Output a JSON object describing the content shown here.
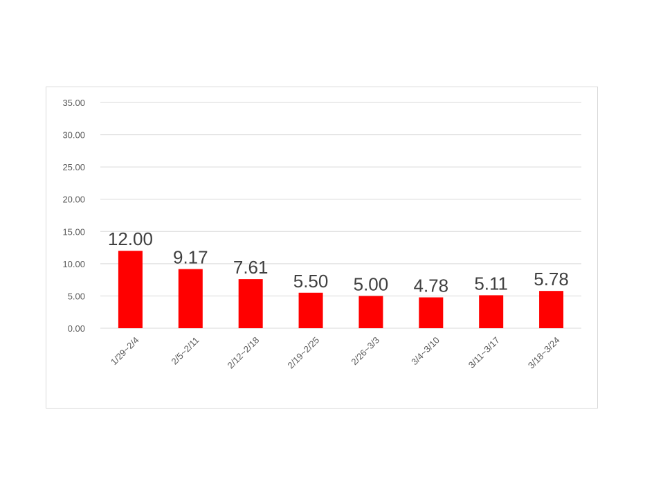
{
  "chart_data": {
    "type": "bar",
    "title": "",
    "xlabel": "",
    "ylabel": "",
    "categories": [
      "1/29~2/4",
      "2/5~2/11",
      "2/12~2/18",
      "2/19~2/25",
      "2/26~3/3",
      "3/4~3/10",
      "3/11~3/17",
      "3/18~3/24"
    ],
    "values": [
      12.0,
      9.17,
      7.61,
      5.5,
      5.0,
      4.78,
      5.11,
      5.78
    ],
    "data_labels": [
      "12.00",
      "9.17",
      "7.61",
      "5.50",
      "5.00",
      "4.78",
      "5.11",
      "5.78"
    ],
    "yticks": [
      "0.00",
      "5.00",
      "10.00",
      "15.00",
      "20.00",
      "25.00",
      "30.00",
      "35.00"
    ],
    "ylim": [
      0,
      35
    ],
    "grid": true,
    "legend": "none",
    "bar_color": "#ff0000"
  }
}
